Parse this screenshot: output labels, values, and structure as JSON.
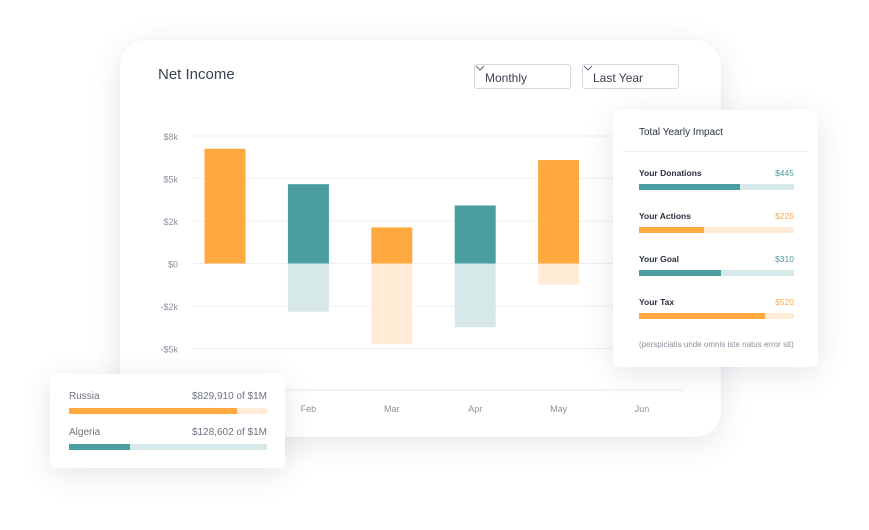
{
  "main_card": {
    "title": "Net Income",
    "dropdowns": [
      "Monthly",
      "Last Year"
    ],
    "chart": {
      "type": "bar",
      "categories": [
        null,
        "Feb",
        "Mar",
        "Apr",
        "May",
        "Jun"
      ],
      "series": [
        {
          "colors": [
            "#ffa93f",
            "#4a9ea0",
            "#ffa93f",
            "#4a9ea0",
            "#ffa93f",
            null
          ],
          "values": [
            7.1,
            4.6,
            1.7,
            3.1,
            6.3,
            null
          ]
        },
        {
          "colors": [
            "#ffebd6",
            "#d6e8e8",
            "#ffebd6",
            "#d6e8e8",
            "#ffebd6",
            null
          ],
          "values": [
            0,
            -2.4,
            -4.7,
            -3.5,
            -1.0,
            null
          ]
        }
      ],
      "ylim": [
        -5,
        8
      ],
      "yticks": [
        {
          "value": 8,
          "label": "$8k"
        },
        {
          "value": 5,
          "label": "$5k"
        },
        {
          "value": 2,
          "label": "$2k"
        },
        {
          "value": 0,
          "label": "$0"
        },
        {
          "value": -2,
          "label": "-$2k"
        },
        {
          "value": -5,
          "label": "-$5k"
        }
      ],
      "grid": true
    }
  },
  "impact_card": {
    "title": "Total Yearly Impact",
    "items": [
      {
        "label": "Your Donations",
        "amount": "$445",
        "color": "#4a9ea0",
        "track": "#d6e8e8",
        "progress": 65
      },
      {
        "label": "Your Actions",
        "amount": "$225",
        "color": "#ffa93f",
        "track": "#ffebd6",
        "progress": 42
      },
      {
        "label": "Your Goal",
        "amount": "$310",
        "color": "#4a9ea0",
        "track": "#d6e8e8",
        "progress": 53
      },
      {
        "label": "Your Tax",
        "amount": "$520",
        "color": "#ffa93f",
        "track": "#ffebd6",
        "progress": 81
      }
    ],
    "note": "(perspiciatis unde omnis iste natus error sit)"
  },
  "country_card": {
    "items": [
      {
        "label": "Russia",
        "amount": "$829,910 of $1M",
        "color": "#ffa93f",
        "track": "#ffebd6",
        "progress": 85
      },
      {
        "label": "Algeria",
        "amount": "$128,602 of $1M",
        "color": "#4a9ea0",
        "track": "#d6e8e8",
        "progress": 31
      }
    ]
  }
}
